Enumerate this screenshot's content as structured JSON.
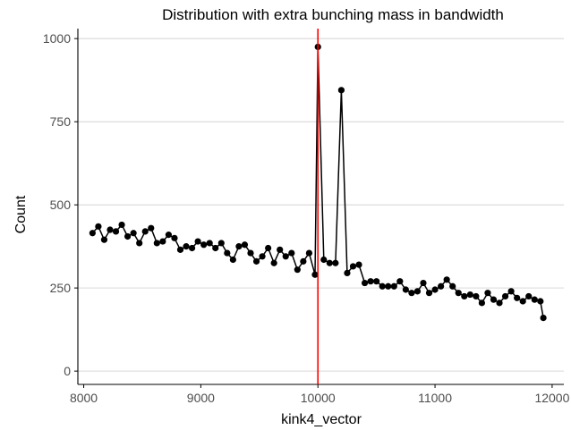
{
  "chart_data": {
    "type": "line",
    "title": "Distribution with extra bunching mass in bandwidth",
    "xlabel": "kink4_vector",
    "ylabel": "Count",
    "xlim": [
      7950,
      12100
    ],
    "ylim": [
      -40,
      1030
    ],
    "x_ticks": [
      8000,
      9000,
      10000,
      11000,
      12000
    ],
    "y_ticks": [
      0,
      250,
      500,
      750,
      1000
    ],
    "x_tick_labels": [
      "8000",
      "9000",
      "10000",
      "11000",
      "12000"
    ],
    "y_tick_labels": [
      "0",
      "250",
      "500",
      "750",
      "1000"
    ],
    "grid": "horizontal major lines",
    "line_color": "#000000",
    "vline": {
      "x": 10000,
      "color": "#ff0000"
    },
    "series": [
      {
        "x": [
          8075,
          8125,
          8175,
          8225,
          8275,
          8325,
          8375,
          8425,
          8475,
          8525,
          8575,
          8625,
          8675,
          8725,
          8775,
          8825,
          8875,
          8925,
          8975,
          9025,
          9075,
          9125,
          9175,
          9225,
          9275,
          9325,
          9375,
          9425,
          9475,
          9525,
          9575,
          9625,
          9675,
          9725,
          9775,
          9825,
          9875,
          9925,
          9975,
          10000,
          10050,
          10100,
          10150,
          10200,
          10250,
          10300,
          10350,
          10400,
          10450,
          10500,
          10550,
          10600,
          10650,
          10700,
          10750,
          10800,
          10850,
          10900,
          10950,
          11000,
          11050,
          11100,
          11150,
          11200,
          11250,
          11300,
          11350,
          11400,
          11450,
          11500,
          11550,
          11600,
          11650,
          11700,
          11750,
          11800,
          11850,
          11900,
          11925
        ],
        "y": [
          415,
          435,
          395,
          425,
          420,
          440,
          405,
          415,
          385,
          420,
          430,
          385,
          390,
          410,
          400,
          365,
          375,
          370,
          390,
          380,
          385,
          370,
          385,
          355,
          335,
          375,
          380,
          355,
          330,
          345,
          370,
          325,
          365,
          345,
          355,
          305,
          330,
          355,
          290,
          975,
          335,
          325,
          325,
          845,
          295,
          315,
          320,
          265,
          270,
          270,
          255,
          255,
          255,
          270,
          245,
          235,
          240,
          265,
          235,
          245,
          255,
          275,
          255,
          235,
          225,
          230,
          225,
          205,
          235,
          215,
          205,
          225,
          240,
          220,
          210,
          225,
          215,
          210,
          160
        ]
      }
    ]
  }
}
